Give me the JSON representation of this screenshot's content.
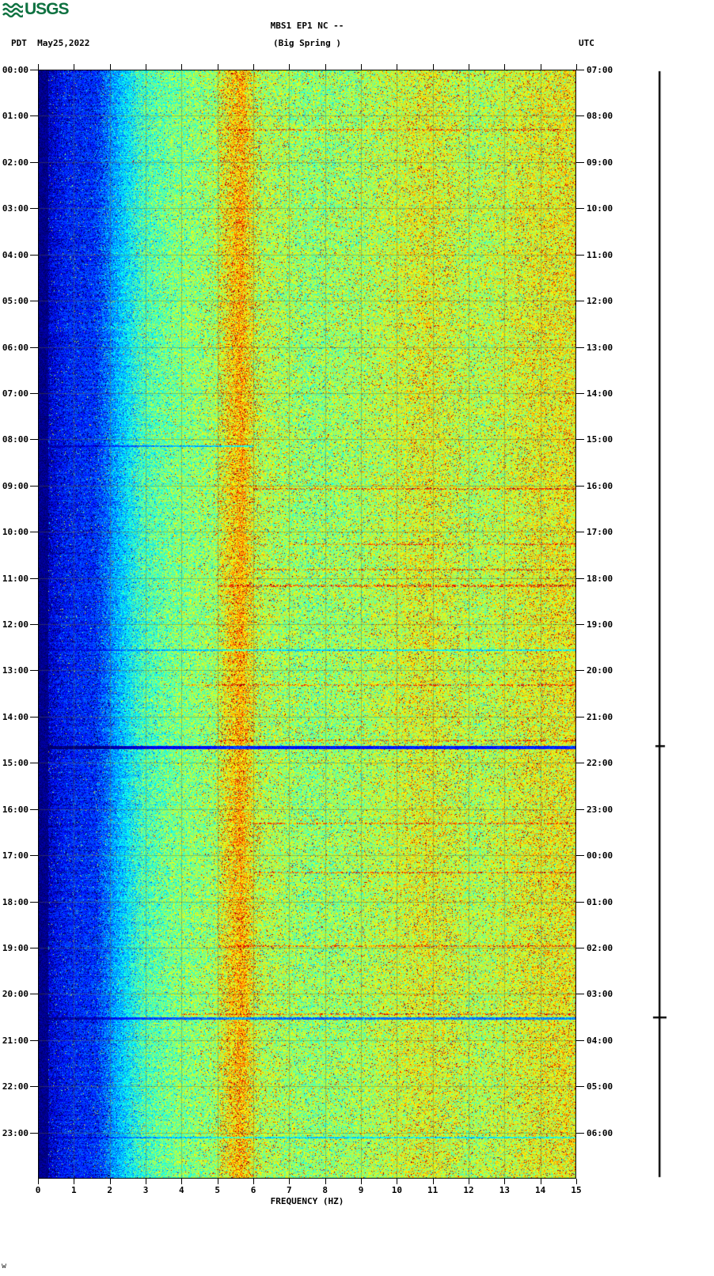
{
  "header": {
    "logo_text": "USGS",
    "left_tz": "PDT",
    "date": "May25,2022",
    "station_line1": "MBS1 EP1 NC --",
    "station_line2": "(Big Spring )",
    "right_tz": "UTC"
  },
  "axes": {
    "xlabel": "FREQUENCY (HZ)",
    "freq_ticks": [
      "0",
      "1",
      "2",
      "3",
      "4",
      "5",
      "6",
      "7",
      "8",
      "9",
      "10",
      "11",
      "12",
      "13",
      "14",
      "15"
    ],
    "left_times": [
      "00:00",
      "01:00",
      "02:00",
      "03:00",
      "04:00",
      "05:00",
      "06:00",
      "07:00",
      "08:00",
      "09:00",
      "10:00",
      "11:00",
      "12:00",
      "13:00",
      "14:00",
      "15:00",
      "16:00",
      "17:00",
      "18:00",
      "19:00",
      "20:00",
      "21:00",
      "22:00",
      "23:00"
    ],
    "right_times": [
      "07:00",
      "08:00",
      "09:00",
      "10:00",
      "11:00",
      "12:00",
      "13:00",
      "14:00",
      "15:00",
      "16:00",
      "17:00",
      "18:00",
      "19:00",
      "20:00",
      "21:00",
      "22:00",
      "23:00",
      "00:00",
      "01:00",
      "02:00",
      "03:00",
      "04:00",
      "05:00",
      "06:00"
    ]
  },
  "chart_data": {
    "type": "heatmap",
    "title": "MBS1 EP1 NC -- (Big Spring ) 24-hour seismic spectrogram",
    "xlabel": "FREQUENCY (HZ)",
    "x_range_hz": [
      0,
      15
    ],
    "y_left_axis": {
      "timezone": "PDT",
      "start": "00:00",
      "end": "24:00",
      "step_hours": 1
    },
    "y_right_axis": {
      "timezone": "UTC",
      "start": "07:00",
      "end": "06:00",
      "step_hours": 1
    },
    "colormap": "jet",
    "grid": true,
    "power_profile": [
      [
        0,
        0.05
      ],
      [
        0.3,
        0.11
      ],
      [
        0.8,
        0.16
      ],
      [
        1.6,
        0.18
      ],
      [
        2.2,
        0.3
      ],
      [
        2.9,
        0.44
      ],
      [
        3.8,
        0.5
      ],
      [
        4.9,
        0.53
      ],
      [
        5.3,
        0.63
      ],
      [
        5.65,
        0.7
      ],
      [
        6.1,
        0.56
      ],
      [
        7.5,
        0.52
      ],
      [
        9.0,
        0.54
      ],
      [
        10.8,
        0.6
      ],
      [
        12.2,
        0.55
      ],
      [
        13.8,
        0.6
      ],
      [
        15,
        0.62
      ]
    ],
    "bands_description": [
      {
        "hz": "0-0.3",
        "level": "very low",
        "color": "near-black navy"
      },
      {
        "hz": "0.3-1.8",
        "level": "low",
        "color": "deep blue"
      },
      {
        "hz": "1.8-2.9",
        "level": "rising",
        "color": "blue to cyan transition"
      },
      {
        "hz": "2.9-5.0",
        "level": "medium",
        "color": "cyan-green mottle"
      },
      {
        "hz": "5.0-6.2",
        "level": "high",
        "color": "yellow-orange-red vertical band"
      },
      {
        "hz": "6.2-15",
        "level": "medium-high",
        "color": "green-yellow mottle with red speckles, stronger near 10.5-11.5 and 13.5-15"
      }
    ],
    "features": [
      {
        "hour": 1.28,
        "type": "red",
        "strength": 0.2,
        "f_min": 5,
        "f_max": 15,
        "rows": 2
      },
      {
        "hour": 8.13,
        "type": "dark",
        "strength": 0.55,
        "f_min": 0,
        "f_max": 6,
        "rows": 2
      },
      {
        "hour": 9.05,
        "type": "red",
        "strength": 0.22,
        "f_min": 6,
        "f_max": 15,
        "rows": 2
      },
      {
        "hour": 10.25,
        "type": "red",
        "strength": 0.2,
        "f_min": 7,
        "f_max": 15,
        "rows": 2
      },
      {
        "hour": 10.8,
        "type": "red",
        "strength": 0.22,
        "f_min": 6,
        "f_max": 15,
        "rows": 2
      },
      {
        "hour": 11.15,
        "type": "red",
        "strength": 0.25,
        "f_min": 5,
        "f_max": 15,
        "rows": 3
      },
      {
        "hour": 12.55,
        "type": "dark",
        "strength": 0.6,
        "f_min": 0,
        "f_max": 15,
        "rows": 2
      },
      {
        "hour": 13.3,
        "type": "red",
        "strength": 0.2,
        "f_min": 4,
        "f_max": 15,
        "rows": 2
      },
      {
        "hour": 14.5,
        "type": "red",
        "strength": 0.2,
        "f_min": 5,
        "f_max": 15,
        "rows": 2
      },
      {
        "hour": 14.63,
        "type": "dark",
        "strength": 0.22,
        "f_min": 0,
        "f_max": 15,
        "rows": 4
      },
      {
        "hour": 16.3,
        "type": "red",
        "strength": 0.2,
        "f_min": 6,
        "f_max": 15,
        "rows": 2
      },
      {
        "hour": 17.35,
        "type": "red",
        "strength": 0.22,
        "f_min": 6,
        "f_max": 15,
        "rows": 2
      },
      {
        "hour": 18.95,
        "type": "red",
        "strength": 0.2,
        "f_min": 5,
        "f_max": 15,
        "rows": 2
      },
      {
        "hour": 20.42,
        "type": "red",
        "strength": 0.22,
        "f_min": 4,
        "f_max": 15,
        "rows": 2
      },
      {
        "hour": 20.5,
        "type": "dark",
        "strength": 0.38,
        "f_min": 0,
        "f_max": 15,
        "rows": 3
      },
      {
        "hour": 23.1,
        "type": "dark",
        "strength": 0.6,
        "f_min": 0,
        "f_max": 15,
        "rows": 2
      }
    ]
  },
  "trace": {
    "blips": [
      {
        "hour": 14.63,
        "half_width": 5
      },
      {
        "hour": 20.5,
        "half_width": 8
      }
    ]
  },
  "colors": {
    "logo_green": "#0e7140",
    "grid": "#6b6b2a",
    "text": "#000000"
  },
  "corner_mark": "w"
}
